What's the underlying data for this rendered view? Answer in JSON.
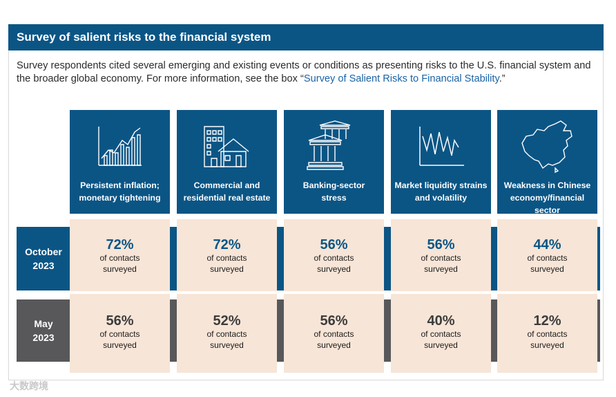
{
  "title": "Survey of salient risks to the financial system",
  "intro": {
    "text": "Survey respondents cited several emerging and existing events or conditions as presenting risks to the U.S. financial system and the broader global economy. For more information, see the box “",
    "link": "Survey of Salient Risks to Financial Stability",
    "end": ".”"
  },
  "rows": {
    "october": {
      "line1": "October",
      "line2": "2023"
    },
    "may": {
      "line1": "May",
      "line2": "2023"
    }
  },
  "watermark": "大数跨境",
  "chart_data": {
    "type": "table",
    "title": "Survey of salient risks to the financial system",
    "unit_label": "of contacts surveyed",
    "unit_line1": "of contacts",
    "unit_line2": "surveyed",
    "categories": [
      "Persistent inflation; monetary tightening",
      "Commercial and residential real estate",
      "Banking-sector stress",
      "Market liquidity strains and volatility",
      "Weakness in Chinese economy/financial sector"
    ],
    "categories_lines": [
      [
        "Persistent inflation;",
        "monetary tightening"
      ],
      [
        "Commercial and",
        "residential real estate"
      ],
      [
        "Banking-sector",
        "stress"
      ],
      [
        "Market liquidity strains",
        "and volatility"
      ],
      [
        "Weakness in Chinese",
        "economy/financial sector"
      ]
    ],
    "icons": [
      "bar-line-growth-icon",
      "buildings-icon",
      "bank-icon",
      "volatility-line-icon",
      "china-map-icon"
    ],
    "series": [
      {
        "name": "October 2023",
        "values": [
          72,
          72,
          56,
          56,
          44
        ],
        "labels": [
          "72%",
          "72%",
          "56%",
          "56%",
          "44%"
        ]
      },
      {
        "name": "May 2023",
        "values": [
          56,
          52,
          56,
          40,
          12
        ],
        "labels": [
          "56%",
          "52%",
          "56%",
          "40%",
          "12%"
        ]
      }
    ],
    "colors": {
      "header": "#0b5585",
      "october_band": "#0b5585",
      "may_band": "#58585a",
      "cell": "#f7e5d7"
    }
  }
}
